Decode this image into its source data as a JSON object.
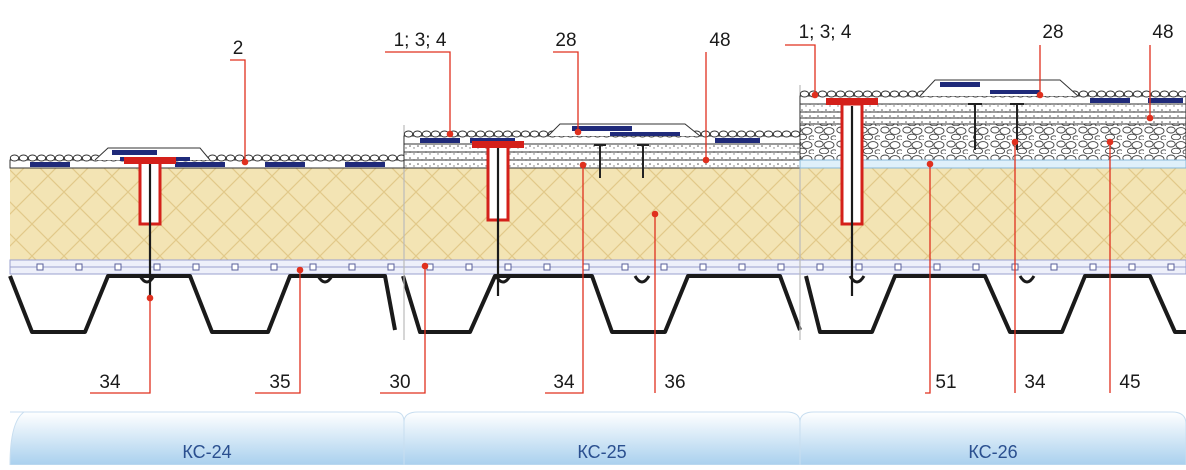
{
  "callouts": {
    "c_2": "2",
    "c_134_a": "1; 3; 4",
    "c_28_a": "28",
    "c_48_a": "48",
    "c_134_b": "1; 3; 4",
    "c_28_b": "28",
    "c_48_b": "48",
    "c_34_a": "34",
    "c_35": "35",
    "c_30": "30",
    "c_34_b": "34",
    "c_36": "36",
    "c_51": "51",
    "c_34_c": "34",
    "c_45": "45"
  },
  "panels": [
    "КС-24",
    "КС-25",
    "КС-26"
  ],
  "colors": {
    "insulation": "#f3e4b4",
    "insulation_hatch": "#e2c98a",
    "membrane_dark": "#1f2a7a",
    "fastener_red": "#d4201a",
    "leader_red": "#e0301e",
    "deck": "#1a1a1a",
    "vapor_barrier": "#c9cde8",
    "panel_gradient_top": "#ffffff",
    "panel_gradient_bottom": "#a9d0ee",
    "panel_text": "#2a4f8f"
  }
}
